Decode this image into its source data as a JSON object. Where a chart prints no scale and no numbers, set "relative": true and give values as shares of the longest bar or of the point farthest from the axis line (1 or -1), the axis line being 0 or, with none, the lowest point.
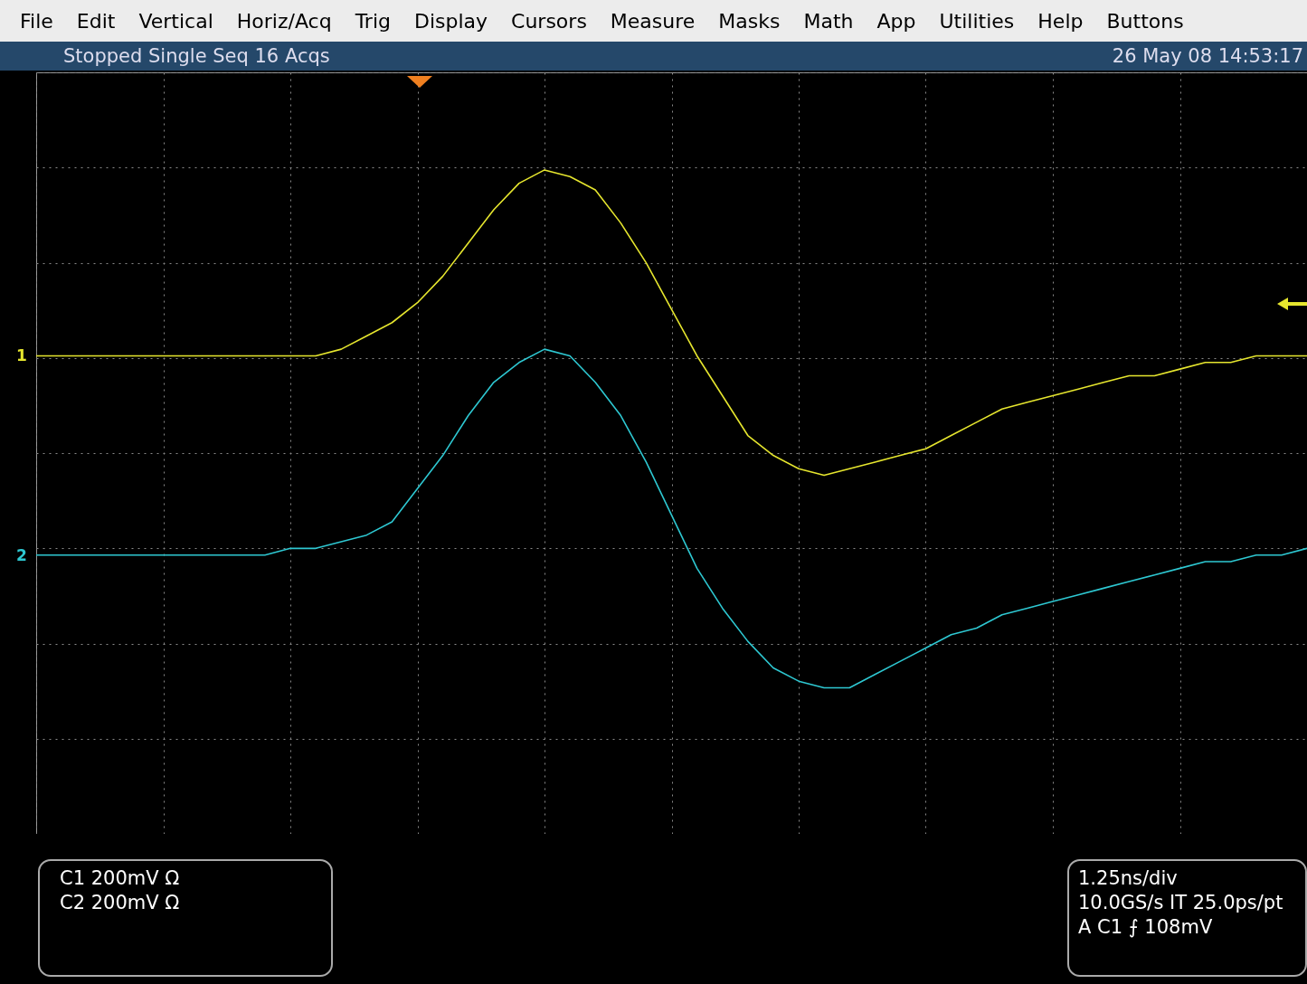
{
  "chart_data": {
    "type": "line",
    "relative": true,
    "grid": true,
    "title": "Stopped Single Seq 16 Acqs",
    "subtitle": "26 May 08 14:53:17",
    "categories": [
      null,
      null,
      null,
      null,
      null,
      null,
      null,
      null,
      null,
      null,
      null,
      null,
      null,
      null,
      null,
      null,
      null,
      null,
      null,
      null,
      null,
      null,
      null,
      null,
      null,
      null,
      null,
      null,
      null,
      null,
      null,
      null,
      null,
      null,
      null,
      null,
      null,
      null,
      null,
      null,
      null,
      null,
      null,
      null,
      null,
      null,
      null,
      null,
      null,
      null,
      null
    ],
    "series": [
      {
        "name": "1",
        "color": "#e6e62e",
        "values": [
          0.72,
          0.72,
          0.72,
          0.72,
          0.72,
          0.72,
          0.72,
          0.72,
          0.72,
          0.72,
          0.72,
          0.72,
          0.73,
          0.75,
          0.77,
          0.8,
          0.84,
          0.89,
          0.94,
          0.98,
          1.0,
          0.99,
          0.97,
          0.92,
          0.86,
          0.79,
          0.72,
          0.66,
          0.6,
          0.57,
          0.55,
          0.54,
          0.55,
          0.56,
          0.57,
          0.58,
          0.6,
          0.62,
          0.64,
          0.65,
          0.66,
          0.67,
          0.68,
          0.69,
          0.69,
          0.7,
          0.71,
          0.71,
          0.72,
          0.72,
          0.72
        ]
      },
      {
        "name": "2",
        "color": "#2ec8d2",
        "values": [
          0.42,
          0.42,
          0.42,
          0.42,
          0.42,
          0.42,
          0.42,
          0.42,
          0.42,
          0.42,
          0.43,
          0.43,
          0.44,
          0.45,
          0.47,
          0.52,
          0.57,
          0.63,
          0.68,
          0.71,
          0.73,
          0.72,
          0.68,
          0.63,
          0.56,
          0.48,
          0.4,
          0.34,
          0.29,
          0.25,
          0.23,
          0.22,
          0.22,
          0.24,
          0.26,
          0.28,
          0.3,
          0.31,
          0.33,
          0.34,
          0.35,
          0.36,
          0.37,
          0.38,
          0.39,
          0.4,
          0.41,
          0.41,
          0.42,
          0.42,
          0.43
        ]
      }
    ],
    "annotations": [
      "File",
      "Edit",
      "Vertical",
      "Horiz/Acq",
      "Trig",
      "Display",
      "Cursors",
      "Measure",
      "Masks",
      "Math",
      "App",
      "Utilities",
      "Help",
      "Buttons",
      "C1 200mV Ω",
      "C2 200mV Ω",
      "1.25ns/div",
      "10.0GS/s IT 25.0ps/pt",
      "A C1 ⨍ 108mV"
    ]
  }
}
